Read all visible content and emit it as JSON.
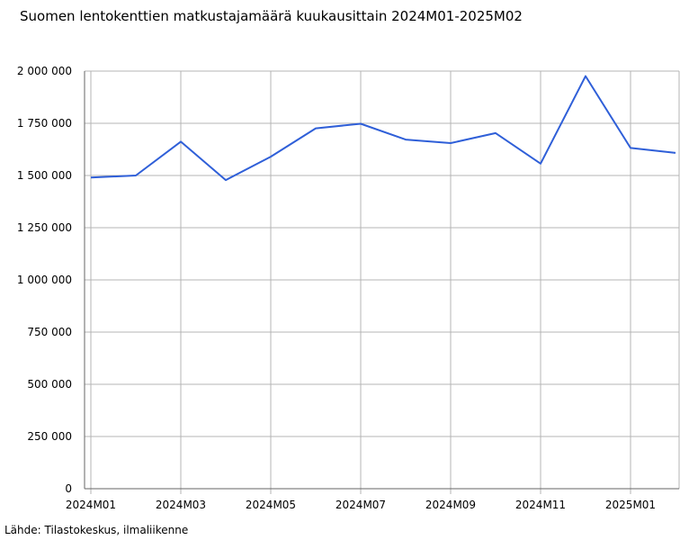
{
  "source_label": "Lähde: Tilastokeskus, ilmaliikenne",
  "colors": {
    "line": "#2f5fd8",
    "grid": "#b4b4b4",
    "axis": "#666666"
  },
  "chart_data": {
    "type": "line",
    "title": "Suomen lentokenttien matkustajamäärä kuukausittain 2024M01-2025M02",
    "xlabel": "",
    "ylabel": "",
    "categories": [
      "2024M01",
      "2024M02",
      "2024M03",
      "2024M04",
      "2024M05",
      "2024M06",
      "2024M07",
      "2024M08",
      "2024M09",
      "2024M10",
      "2024M11",
      "2024M12",
      "2025M01",
      "2025M02"
    ],
    "x_tick_labels": [
      "2024M01",
      "2024M03",
      "2024M05",
      "2024M07",
      "2024M09",
      "2024M11",
      "2025M01"
    ],
    "series": [
      {
        "values": [
          1490000,
          1500000,
          1662000,
          1478000,
          1590000,
          1726000,
          1748000,
          1672000,
          1655000,
          1703000,
          1557000,
          1976000,
          1632000,
          1608000
        ]
      }
    ],
    "ylim": [
      0,
      2000000
    ],
    "y_ticks": [
      0,
      250000,
      500000,
      750000,
      1000000,
      1250000,
      1500000,
      1750000,
      2000000
    ],
    "y_tick_labels": [
      "0",
      "250 000",
      "500 000",
      "750 000",
      "1 000 000",
      "1 250 000",
      "1 500 000",
      "1 750 000",
      "2 000 000"
    ],
    "grid": true,
    "legend": "none"
  }
}
